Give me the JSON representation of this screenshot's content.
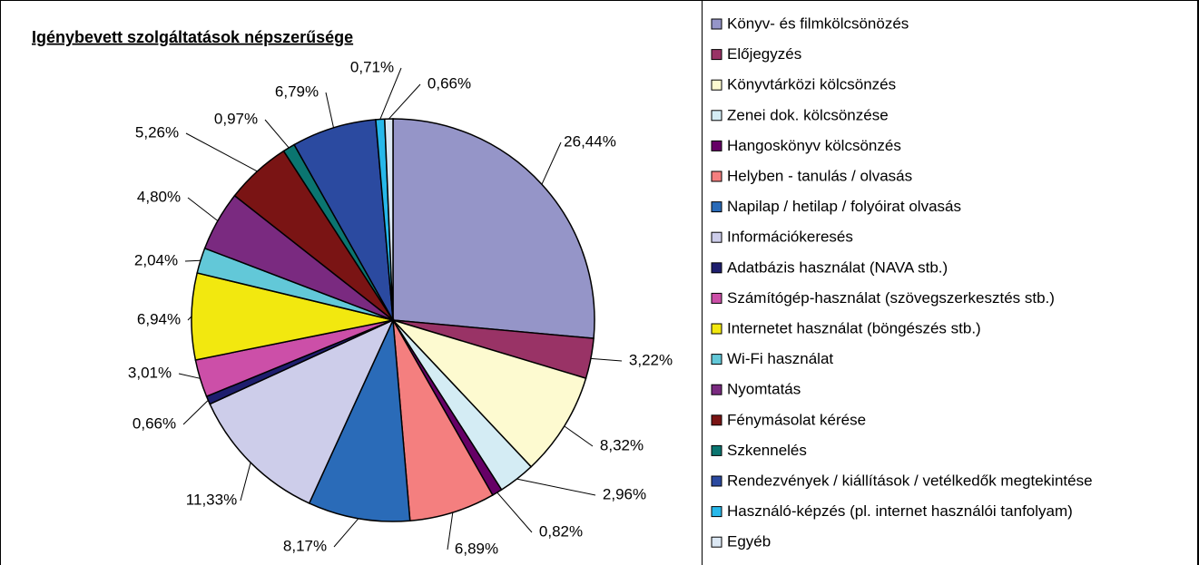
{
  "chart_data": {
    "type": "pie",
    "title": "Igénybevett szolgáltatások népszerűsége",
    "categories": [
      "Könyv- és filmkölcsönözés",
      "Előjegyzés",
      "Könyvtárközi kölcsönzés",
      "Zenei dok. kölcsönzése",
      "Hangoskönyv kölcsönzés",
      "Helyben - tanulás / olvasás",
      "Napilap / hetilap / folyóirat olvasás",
      "Információkeresés",
      "Adatbázis használat (NAVA stb.)",
      "Számítógép-használat (szövegszerkesztés stb.)",
      "Internetet használat (böngészés stb.)",
      "Wi-Fi használat",
      "Nyomtatás",
      "Fénymásolat kérése",
      "Szkennelés",
      "Rendezvények / kiállítások / vetélkedők megtekintése",
      "Használó-képzés (pl. internet használói tanfolyam)",
      "Egyéb"
    ],
    "values": [
      26.44,
      3.22,
      8.32,
      2.96,
      0.82,
      6.89,
      8.17,
      11.33,
      0.66,
      3.01,
      6.94,
      2.04,
      4.8,
      5.26,
      0.97,
      6.79,
      0.71,
      0.66
    ],
    "value_labels": [
      "26,44%",
      "3,22%",
      "8,32%",
      "2,96%",
      "0,82%",
      "6,89%",
      "8,17%",
      "11,33%",
      "0,66%",
      "3,01%",
      "6,94%",
      "2,04%",
      "4,80%",
      "5,26%",
      "0,97%",
      "6,79%",
      "0,71%",
      "0,66%"
    ],
    "colors": [
      "#9595c8",
      "#993366",
      "#fdfad0",
      "#d4ecf4",
      "#660066",
      "#f47f7f",
      "#2a6bb8",
      "#cdcdea",
      "#1e1e6e",
      "#cc4fa8",
      "#f2e80f",
      "#62c8d8",
      "#7a2a80",
      "#7a1414",
      "#0b7570",
      "#2b4aa0",
      "#27b8ea",
      "#dce8f4"
    ],
    "legend": "right"
  }
}
